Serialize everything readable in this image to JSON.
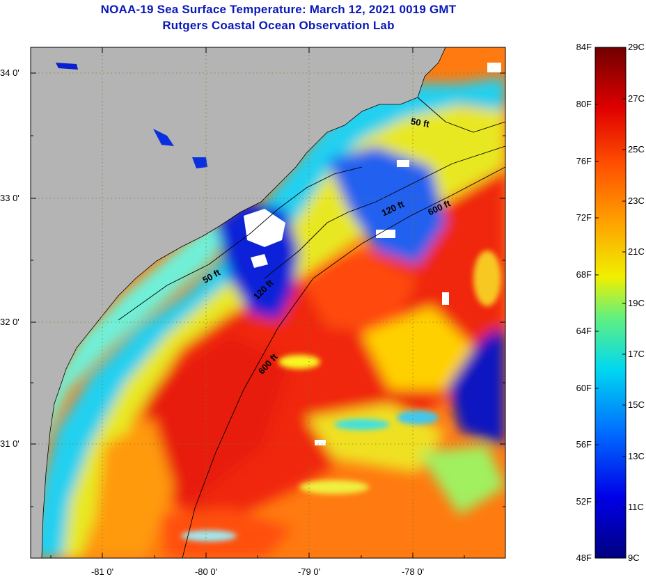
{
  "title": "NOAA-19 Sea Surface Temperature:  March 12, 2021 0019 GMT",
  "subtitle": "Rutgers Coastal Ocean Observation Lab",
  "lat_labels": [
    "34 0'",
    "33 0'",
    "32 0'",
    "31 0'"
  ],
  "lon_labels": [
    "-81 0'",
    "-80 0'",
    "-79 0'",
    "-78 0'"
  ],
  "contour_labels": [
    "50 ft",
    "120 ft",
    "600 ft",
    "50 ft",
    "120 ft",
    "600 ft"
  ],
  "colorbar": {
    "fahrenheit": [
      "84F",
      "80F",
      "76F",
      "72F",
      "68F",
      "64F",
      "60F",
      "56F",
      "52F",
      "48F"
    ],
    "celsius": [
      "29C",
      "27C",
      "25C",
      "23C",
      "21C",
      "19C",
      "17C",
      "15C",
      "13C",
      "11C",
      "9C"
    ]
  },
  "colors": {
    "land": "#b4b4b4",
    "title": "#0a18b8",
    "cold": "#0000a0",
    "warm": "#800000"
  }
}
